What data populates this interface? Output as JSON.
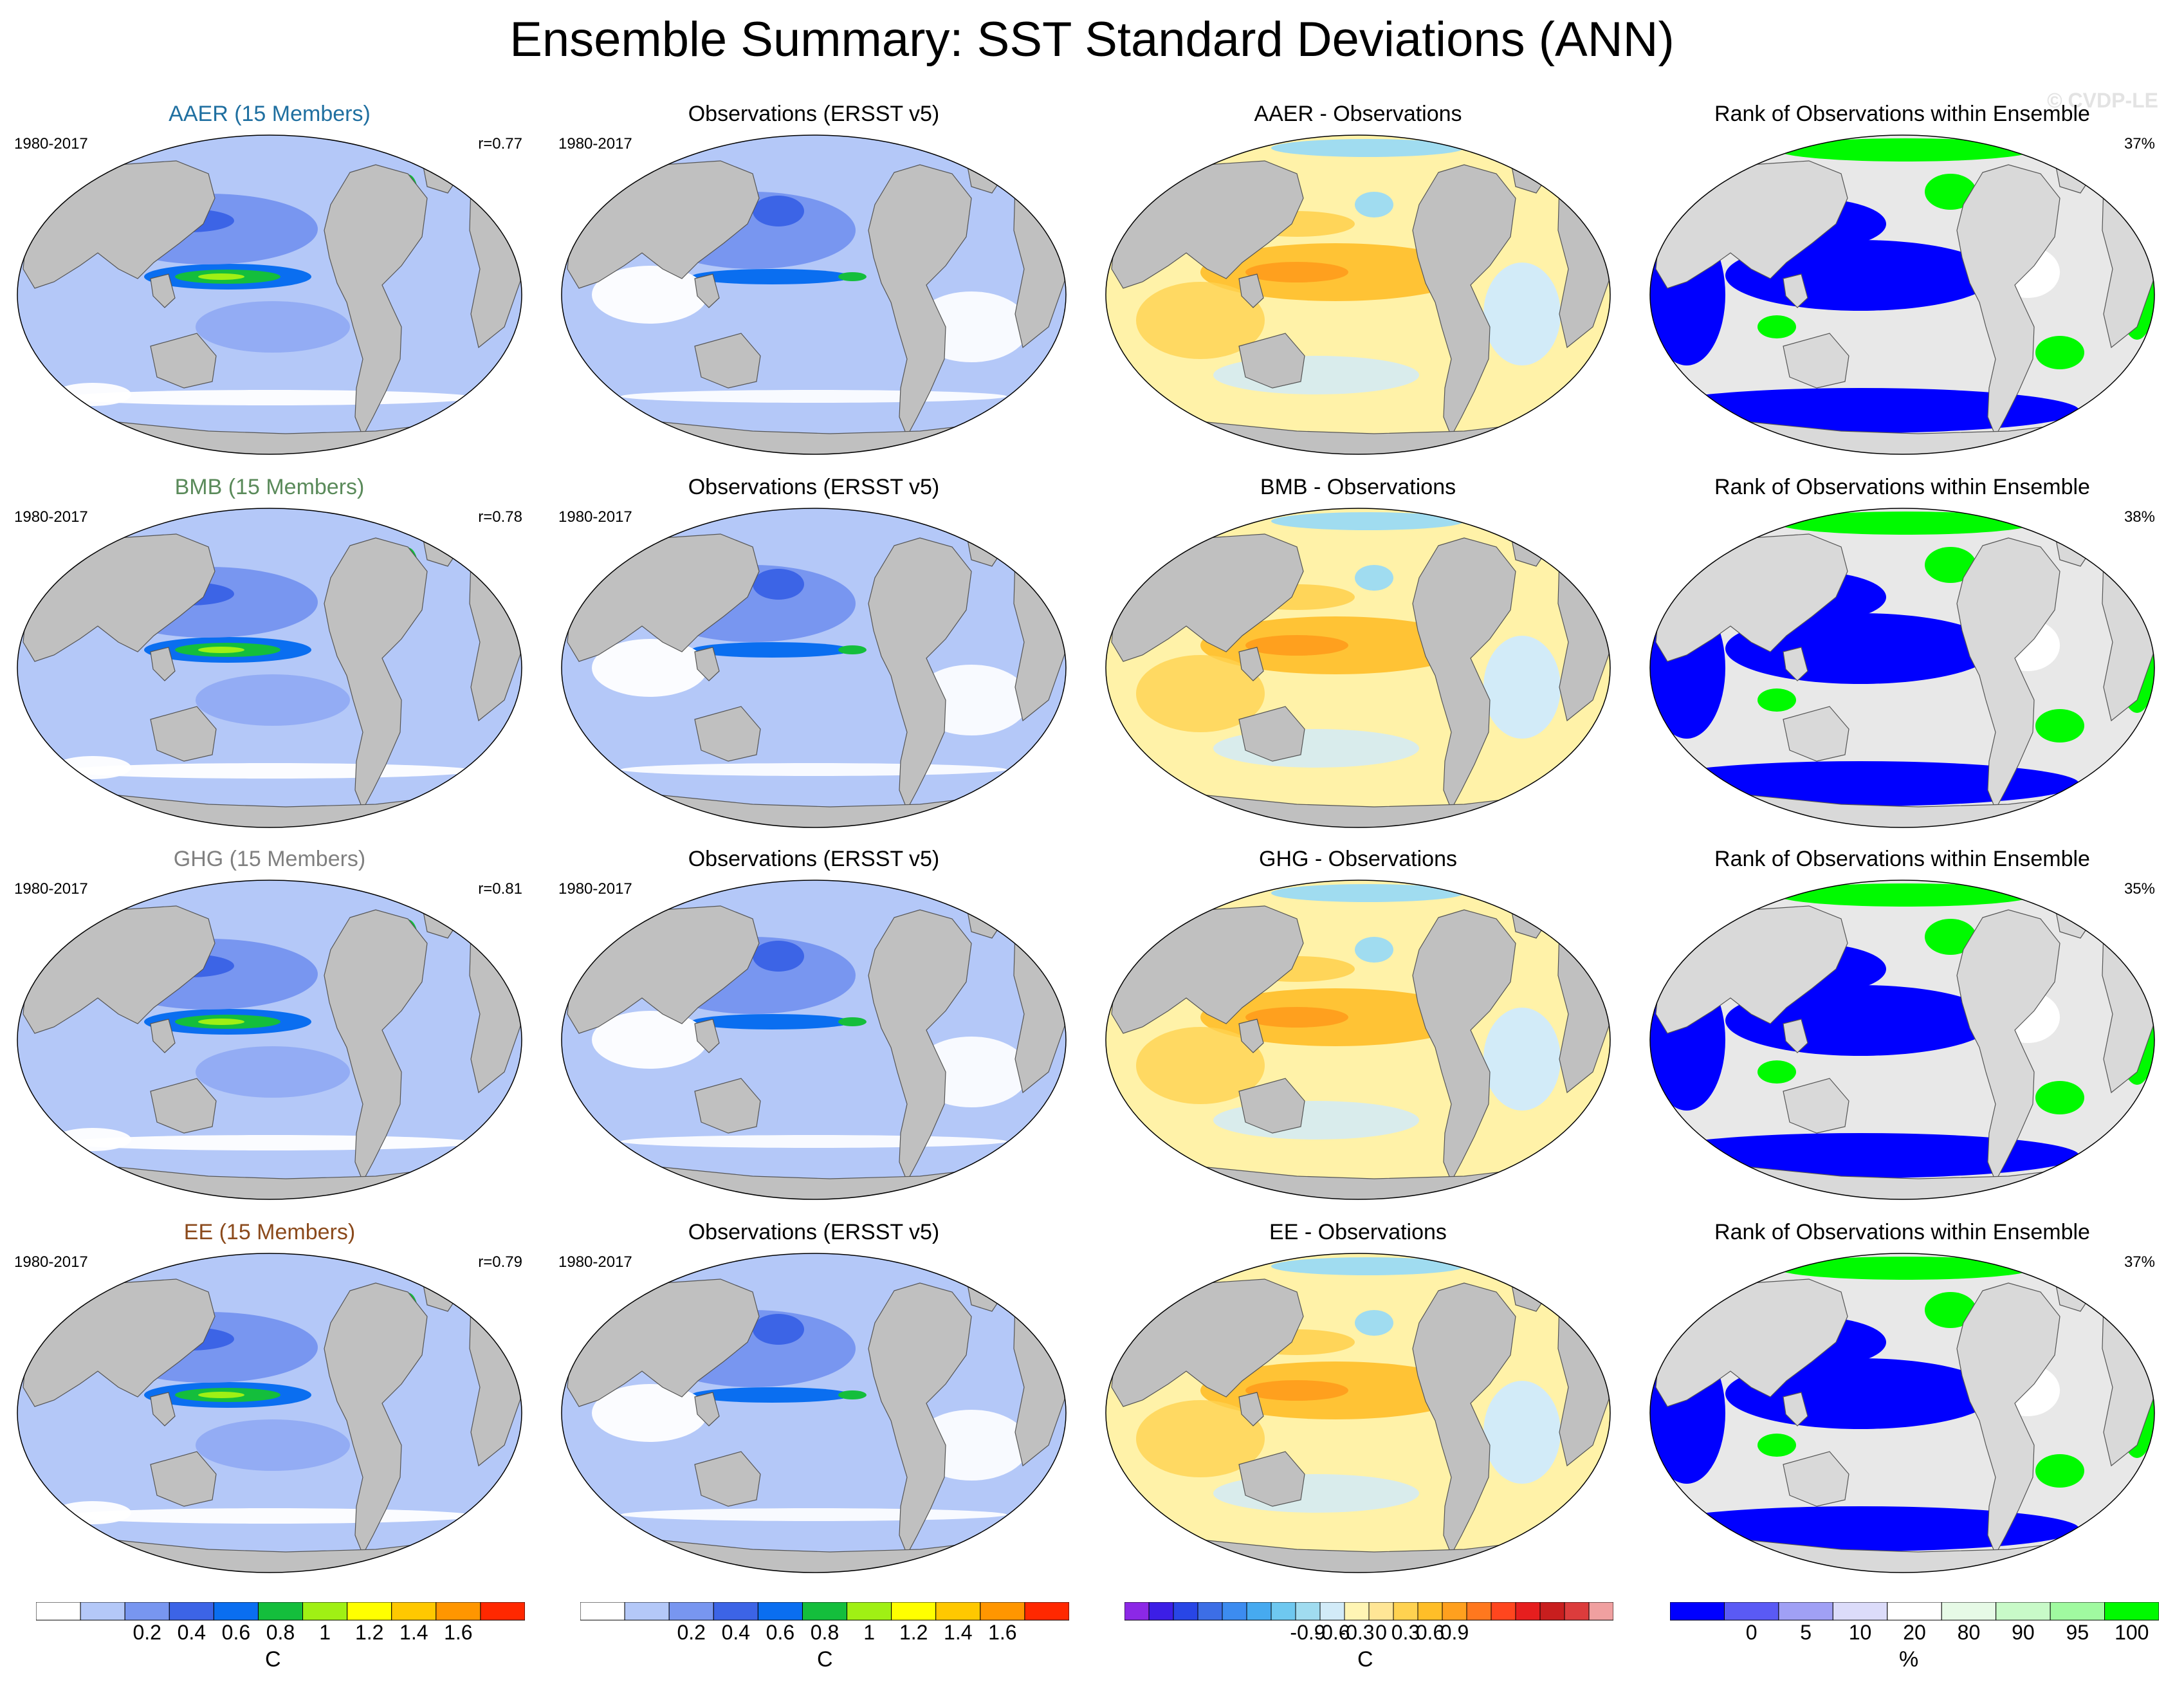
{
  "title": "Ensemble Summary: SST Standard Deviations (ANN)",
  "watermark": "© CVDP-LE",
  "colors": {
    "ocean_base": "#b4c8f8",
    "land": "#c0c0c0",
    "coast": "#555555",
    "diff_base": "#fff2a8",
    "rank_base": "#e8e8e8"
  },
  "rows": [
    {
      "ensemble": {
        "title": "AAER (15 Members)",
        "title_color": "#1f6fa0",
        "years": "1980-2017",
        "corr": "r=0.77"
      },
      "observations": {
        "title": "Observations (ERSST v5)",
        "years": "1980-2017"
      },
      "difference": {
        "title": "AAER - Observations"
      },
      "rank": {
        "title": "Rank of Observations within Ensemble",
        "pct": "37%"
      }
    },
    {
      "ensemble": {
        "title": "BMB (15 Members)",
        "title_color": "#5a8a5a",
        "years": "1980-2017",
        "corr": "r=0.78"
      },
      "observations": {
        "title": "Observations (ERSST v5)",
        "years": "1980-2017"
      },
      "difference": {
        "title": "BMB - Observations"
      },
      "rank": {
        "title": "Rank of Observations within Ensemble",
        "pct": "38%"
      }
    },
    {
      "ensemble": {
        "title": "GHG (15 Members)",
        "title_color": "#808080",
        "years": "1980-2017",
        "corr": "r=0.81"
      },
      "observations": {
        "title": "Observations (ERSST v5)",
        "years": "1980-2017"
      },
      "difference": {
        "title": "GHG - Observations"
      },
      "rank": {
        "title": "Rank of Observations within Ensemble",
        "pct": "35%"
      }
    },
    {
      "ensemble": {
        "title": "EE (15 Members)",
        "title_color": "#8b4a1c",
        "years": "1980-2017",
        "corr": "r=0.79"
      },
      "observations": {
        "title": "Observations (ERSST v5)",
        "years": "1980-2017"
      },
      "difference": {
        "title": "EE - Observations"
      },
      "rank": {
        "title": "Rank of Observations within Ensemble",
        "pct": "37%"
      }
    }
  ],
  "colorbars": {
    "sst_std": {
      "unit": "C",
      "colors": [
        "#ffffff",
        "#b4c8f8",
        "#7896f0",
        "#3c64e6",
        "#0a6ef0",
        "#14be3c",
        "#a0f014",
        "#ffff00",
        "#ffc800",
        "#ff9600",
        "#ff2800"
      ],
      "labels": [
        "0.2",
        "0.4",
        "0.6",
        "0.8",
        "1",
        "1.2",
        "1.4",
        "1.6"
      ]
    },
    "difference": {
      "unit": "C",
      "colors": [
        "#8c28e6",
        "#3c1ee6",
        "#2846e6",
        "#3c6ee6",
        "#3c8cf0",
        "#46aaf0",
        "#6ec8f0",
        "#a0dcf0",
        "#d2ebf8",
        "#fff5b4",
        "#ffe696",
        "#ffd250",
        "#ffbe28",
        "#ffa01e",
        "#ff781e",
        "#ff461e",
        "#e61e1e",
        "#c81e1e",
        "#dc3c3c",
        "#f0a0a0"
      ],
      "labels": [
        "-0.9",
        "-0.6",
        "-0.3",
        "0",
        "0.3",
        "0.6",
        "0.9"
      ]
    },
    "rank": {
      "unit": "%",
      "colors": [
        "#0000ff",
        "#5a5af5",
        "#a0a0f5",
        "#dcdcfa",
        "#ffffff",
        "#e6fae6",
        "#c8fac8",
        "#a0faa0",
        "#00fa00"
      ],
      "labels": [
        "0",
        "5",
        "10",
        "20",
        "80",
        "90",
        "95",
        "100"
      ]
    }
  }
}
